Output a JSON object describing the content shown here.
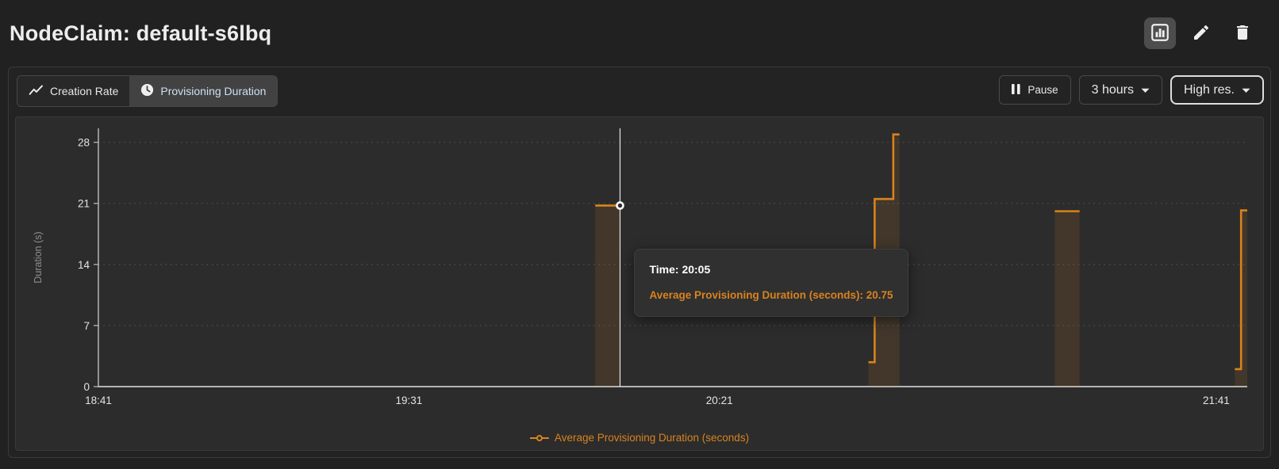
{
  "header": {
    "title": "NodeClaim: default-s6lbq"
  },
  "header_actions": {
    "chart_view_icon": "bar-chart-icon",
    "edit_icon": "pencil-icon",
    "delete_icon": "trash-icon"
  },
  "toolbar": {
    "tabs": [
      {
        "label": "Creation Rate",
        "icon": "trend-line-icon",
        "active": false
      },
      {
        "label": "Provisioning Duration",
        "icon": "clock-icon",
        "active": true
      }
    ],
    "pause_label": "Pause",
    "time_range_label": "3 hours",
    "resolution_label": "High res."
  },
  "tooltip": {
    "time_line": "Time: 20:05",
    "value_line": "Average Provisioning Duration (seconds): 20.75"
  },
  "legend": {
    "label": "Average Provisioning Duration (seconds)"
  },
  "colors": {
    "accent": "#d9831e",
    "axis": "#b5b5b5",
    "grid": "#4f4f4f",
    "tick_text": "#e3e3e3",
    "axis_label": "#8f8f8f",
    "crosshair": "#e8e8e8",
    "chart_bg": "#2c2c2c"
  },
  "chart_data": {
    "type": "line",
    "step": true,
    "title": "Provisioning Duration",
    "xlabel": "",
    "ylabel": "Duration (s)",
    "x_range": [
      "18:41",
      "21:46"
    ],
    "x_ticks": [
      "18:41",
      "19:31",
      "20:21",
      "21:41"
    ],
    "y_ticks": [
      0,
      7,
      14,
      21,
      28
    ],
    "ylim": [
      0,
      29.6
    ],
    "grid": "horizontal-dashed",
    "legend_position": "bottom-center",
    "series": [
      {
        "name": "Average Provisioning Duration (seconds)",
        "color": "#d9831e",
        "fill_opacity": 0.13,
        "segments": [
          [
            [
              "20:01",
              20.75
            ],
            [
              "20:05",
              20.75
            ]
          ],
          [
            [
              "20:45",
              2.8
            ],
            [
              "20:46",
              21.5
            ],
            [
              "20:49",
              28.9
            ],
            [
              "20:50",
              28.9
            ]
          ],
          [
            [
              "21:15",
              20.1
            ],
            [
              "21:19",
              20.1
            ]
          ],
          [
            [
              "21:44",
              2.0
            ],
            [
              "21:45",
              20.2
            ],
            [
              "21:46",
              20.2
            ]
          ]
        ]
      }
    ],
    "hover": {
      "time": "20:05",
      "value": 20.75
    }
  }
}
